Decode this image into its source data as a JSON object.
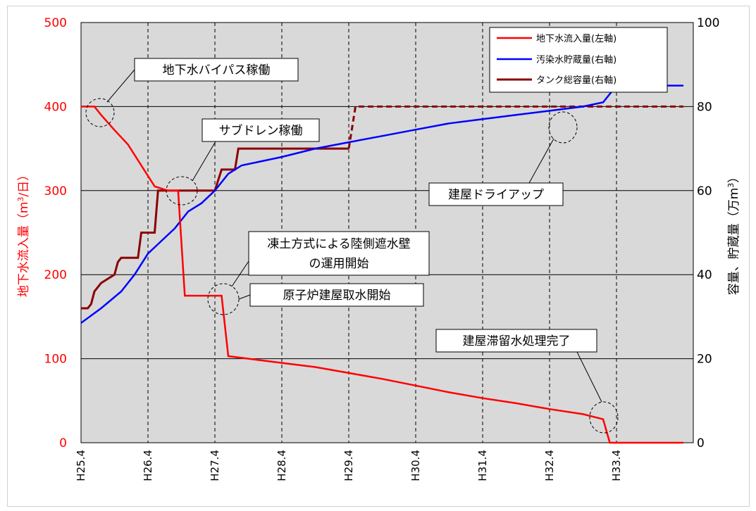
{
  "chart_data": {
    "type": "line",
    "x_categories": [
      "H25.4",
      "H26.4",
      "H27.4",
      "H28.4",
      "H29.4",
      "H30.4",
      "H31.4",
      "H32.4",
      "H33.4"
    ],
    "y_left": {
      "label": "地下水流入量（m³/日）",
      "label_main": "地下水流入量（m",
      "label_sup": "3",
      "label_tail": "/日）",
      "ticks": [
        "0",
        "100",
        "200",
        "300",
        "400",
        "500"
      ],
      "range": [
        0,
        500
      ]
    },
    "y_right": {
      "label": "容量、貯蔵量（万m³）",
      "label_main": "容量、貯蔵量（万m",
      "label_sup": "3",
      "label_tail": "）",
      "ticks": [
        "0",
        "20",
        "40",
        "60",
        "80",
        "100"
      ],
      "range": [
        0,
        100
      ]
    },
    "grid": true,
    "legend_position": "top-right",
    "series": [
      {
        "name": "地下水流入量(左軸)",
        "axis": "left",
        "color": "#ff0000",
        "points": [
          [
            0,
            400
          ],
          [
            0.2,
            400
          ],
          [
            0.3,
            390
          ],
          [
            0.5,
            372
          ],
          [
            0.7,
            355
          ],
          [
            0.9,
            330
          ],
          [
            1.1,
            305
          ],
          [
            1.3,
            300
          ],
          [
            1.45,
            300
          ],
          [
            1.55,
            175
          ],
          [
            2.1,
            175
          ],
          [
            2.2,
            103
          ],
          [
            2.5,
            100
          ],
          [
            3,
            95
          ],
          [
            3.5,
            90
          ],
          [
            4,
            83
          ],
          [
            4.5,
            76
          ],
          [
            5,
            68
          ],
          [
            5.5,
            60
          ],
          [
            6,
            53
          ],
          [
            6.5,
            47
          ],
          [
            7,
            40
          ],
          [
            7.5,
            34
          ],
          [
            7.7,
            30
          ],
          [
            7.8,
            28
          ],
          [
            7.9,
            0
          ],
          [
            8.2,
            0
          ],
          [
            9,
            0
          ]
        ]
      },
      {
        "name": "汚染水貯蔵量(右軸)",
        "axis": "right",
        "color": "#0000ff",
        "points": [
          [
            0,
            28.5
          ],
          [
            0.3,
            32
          ],
          [
            0.6,
            36
          ],
          [
            0.8,
            40
          ],
          [
            1,
            45
          ],
          [
            1.2,
            48
          ],
          [
            1.4,
            51
          ],
          [
            1.6,
            55
          ],
          [
            1.8,
            57
          ],
          [
            2,
            60
          ],
          [
            2.2,
            64
          ],
          [
            2.4,
            66
          ],
          [
            3,
            68
          ],
          [
            3.5,
            70
          ],
          [
            4,
            71.5
          ],
          [
            4.5,
            73
          ],
          [
            5,
            74.5
          ],
          [
            5.5,
            76
          ],
          [
            6,
            77
          ],
          [
            6.5,
            78
          ],
          [
            7,
            79
          ],
          [
            7.5,
            80
          ],
          [
            7.8,
            81
          ],
          [
            8,
            85
          ],
          [
            8.2,
            85
          ],
          [
            8.5,
            85
          ],
          [
            9,
            85
          ]
        ],
        "points_note": ""
      },
      {
        "name": "タンク総容量(右軸)",
        "axis": "right",
        "color": "#8b0000",
        "steps": [
          [
            0,
            32
          ],
          [
            0.1,
            32
          ],
          [
            0.15,
            33
          ],
          [
            0.2,
            36
          ],
          [
            0.3,
            38
          ],
          [
            0.5,
            40
          ],
          [
            0.55,
            43
          ],
          [
            0.6,
            44
          ],
          [
            0.85,
            44
          ],
          [
            0.9,
            50
          ],
          [
            1.1,
            50
          ],
          [
            1.15,
            60
          ],
          [
            1.25,
            60
          ],
          [
            1.3,
            60
          ],
          [
            2,
            60
          ],
          [
            2.1,
            65
          ],
          [
            2.3,
            65
          ],
          [
            2.35,
            70
          ],
          [
            2.4,
            70
          ],
          [
            3,
            70
          ],
          [
            4,
            70
          ],
          [
            4.05,
            75
          ],
          [
            4.1,
            80
          ],
          [
            9,
            80
          ]
        ],
        "dashed_from_x": 4
      }
    ],
    "annotations": [
      {
        "text": "地下水バイパス稼働"
      },
      {
        "text": "サブドレン稼働"
      },
      {
        "text_line1": "凍土方式による陸側遮水壁",
        "text_line2": "の運用開始"
      },
      {
        "text": "原子炉建屋取水開始"
      },
      {
        "text": "建屋ドライアップ"
      },
      {
        "text": "建屋滞留水処理完了"
      }
    ]
  }
}
